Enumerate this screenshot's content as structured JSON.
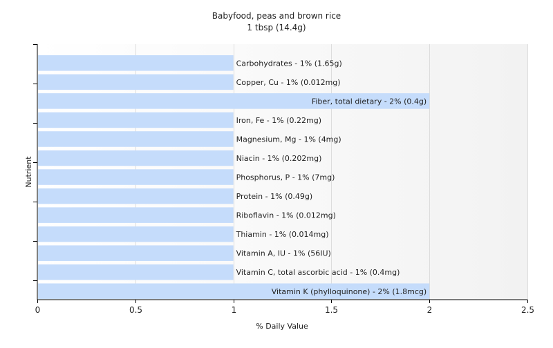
{
  "chart_data": {
    "type": "bar",
    "orientation": "horizontal",
    "title": "Babyfood, peas and brown rice",
    "subtitle": "1 tbsp (14.4g)",
    "xlabel": "% Daily Value",
    "ylabel": "Nutrient",
    "xlim": [
      0,
      2.5
    ],
    "xticks": [
      "0",
      "0.5",
      "1",
      "1.5",
      "2",
      "2.5"
    ],
    "grid": true,
    "bar_color": "#c5dcfb",
    "bars": [
      {
        "category": "Carbohydrates",
        "value": 1,
        "label": "Carbohydrates - 1% (1.65g)"
      },
      {
        "category": "Copper, Cu",
        "value": 1,
        "label": "Copper, Cu - 1% (0.012mg)"
      },
      {
        "category": "Fiber, total dietary",
        "value": 2,
        "label": "Fiber, total dietary - 2% (0.4g)"
      },
      {
        "category": "Iron, Fe",
        "value": 1,
        "label": "Iron, Fe - 1% (0.22mg)"
      },
      {
        "category": "Magnesium, Mg",
        "value": 1,
        "label": "Magnesium, Mg - 1% (4mg)"
      },
      {
        "category": "Niacin",
        "value": 1,
        "label": "Niacin - 1% (0.202mg)"
      },
      {
        "category": "Phosphorus, P",
        "value": 1,
        "label": "Phosphorus, P - 1% (7mg)"
      },
      {
        "category": "Protein",
        "value": 1,
        "label": "Protein - 1% (0.49g)"
      },
      {
        "category": "Riboflavin",
        "value": 1,
        "label": "Riboflavin - 1% (0.012mg)"
      },
      {
        "category": "Thiamin",
        "value": 1,
        "label": "Thiamin - 1% (0.014mg)"
      },
      {
        "category": "Vitamin A, IU",
        "value": 1,
        "label": "Vitamin A, IU - 1% (56IU)"
      },
      {
        "category": "Vitamin C, total ascorbic acid",
        "value": 1,
        "label": "Vitamin C, total ascorbic acid - 1% (0.4mg)"
      },
      {
        "category": "Vitamin K (phylloquinone)",
        "value": 2,
        "label": "Vitamin K (phylloquinone) - 2% (1.8mcg)"
      }
    ]
  }
}
